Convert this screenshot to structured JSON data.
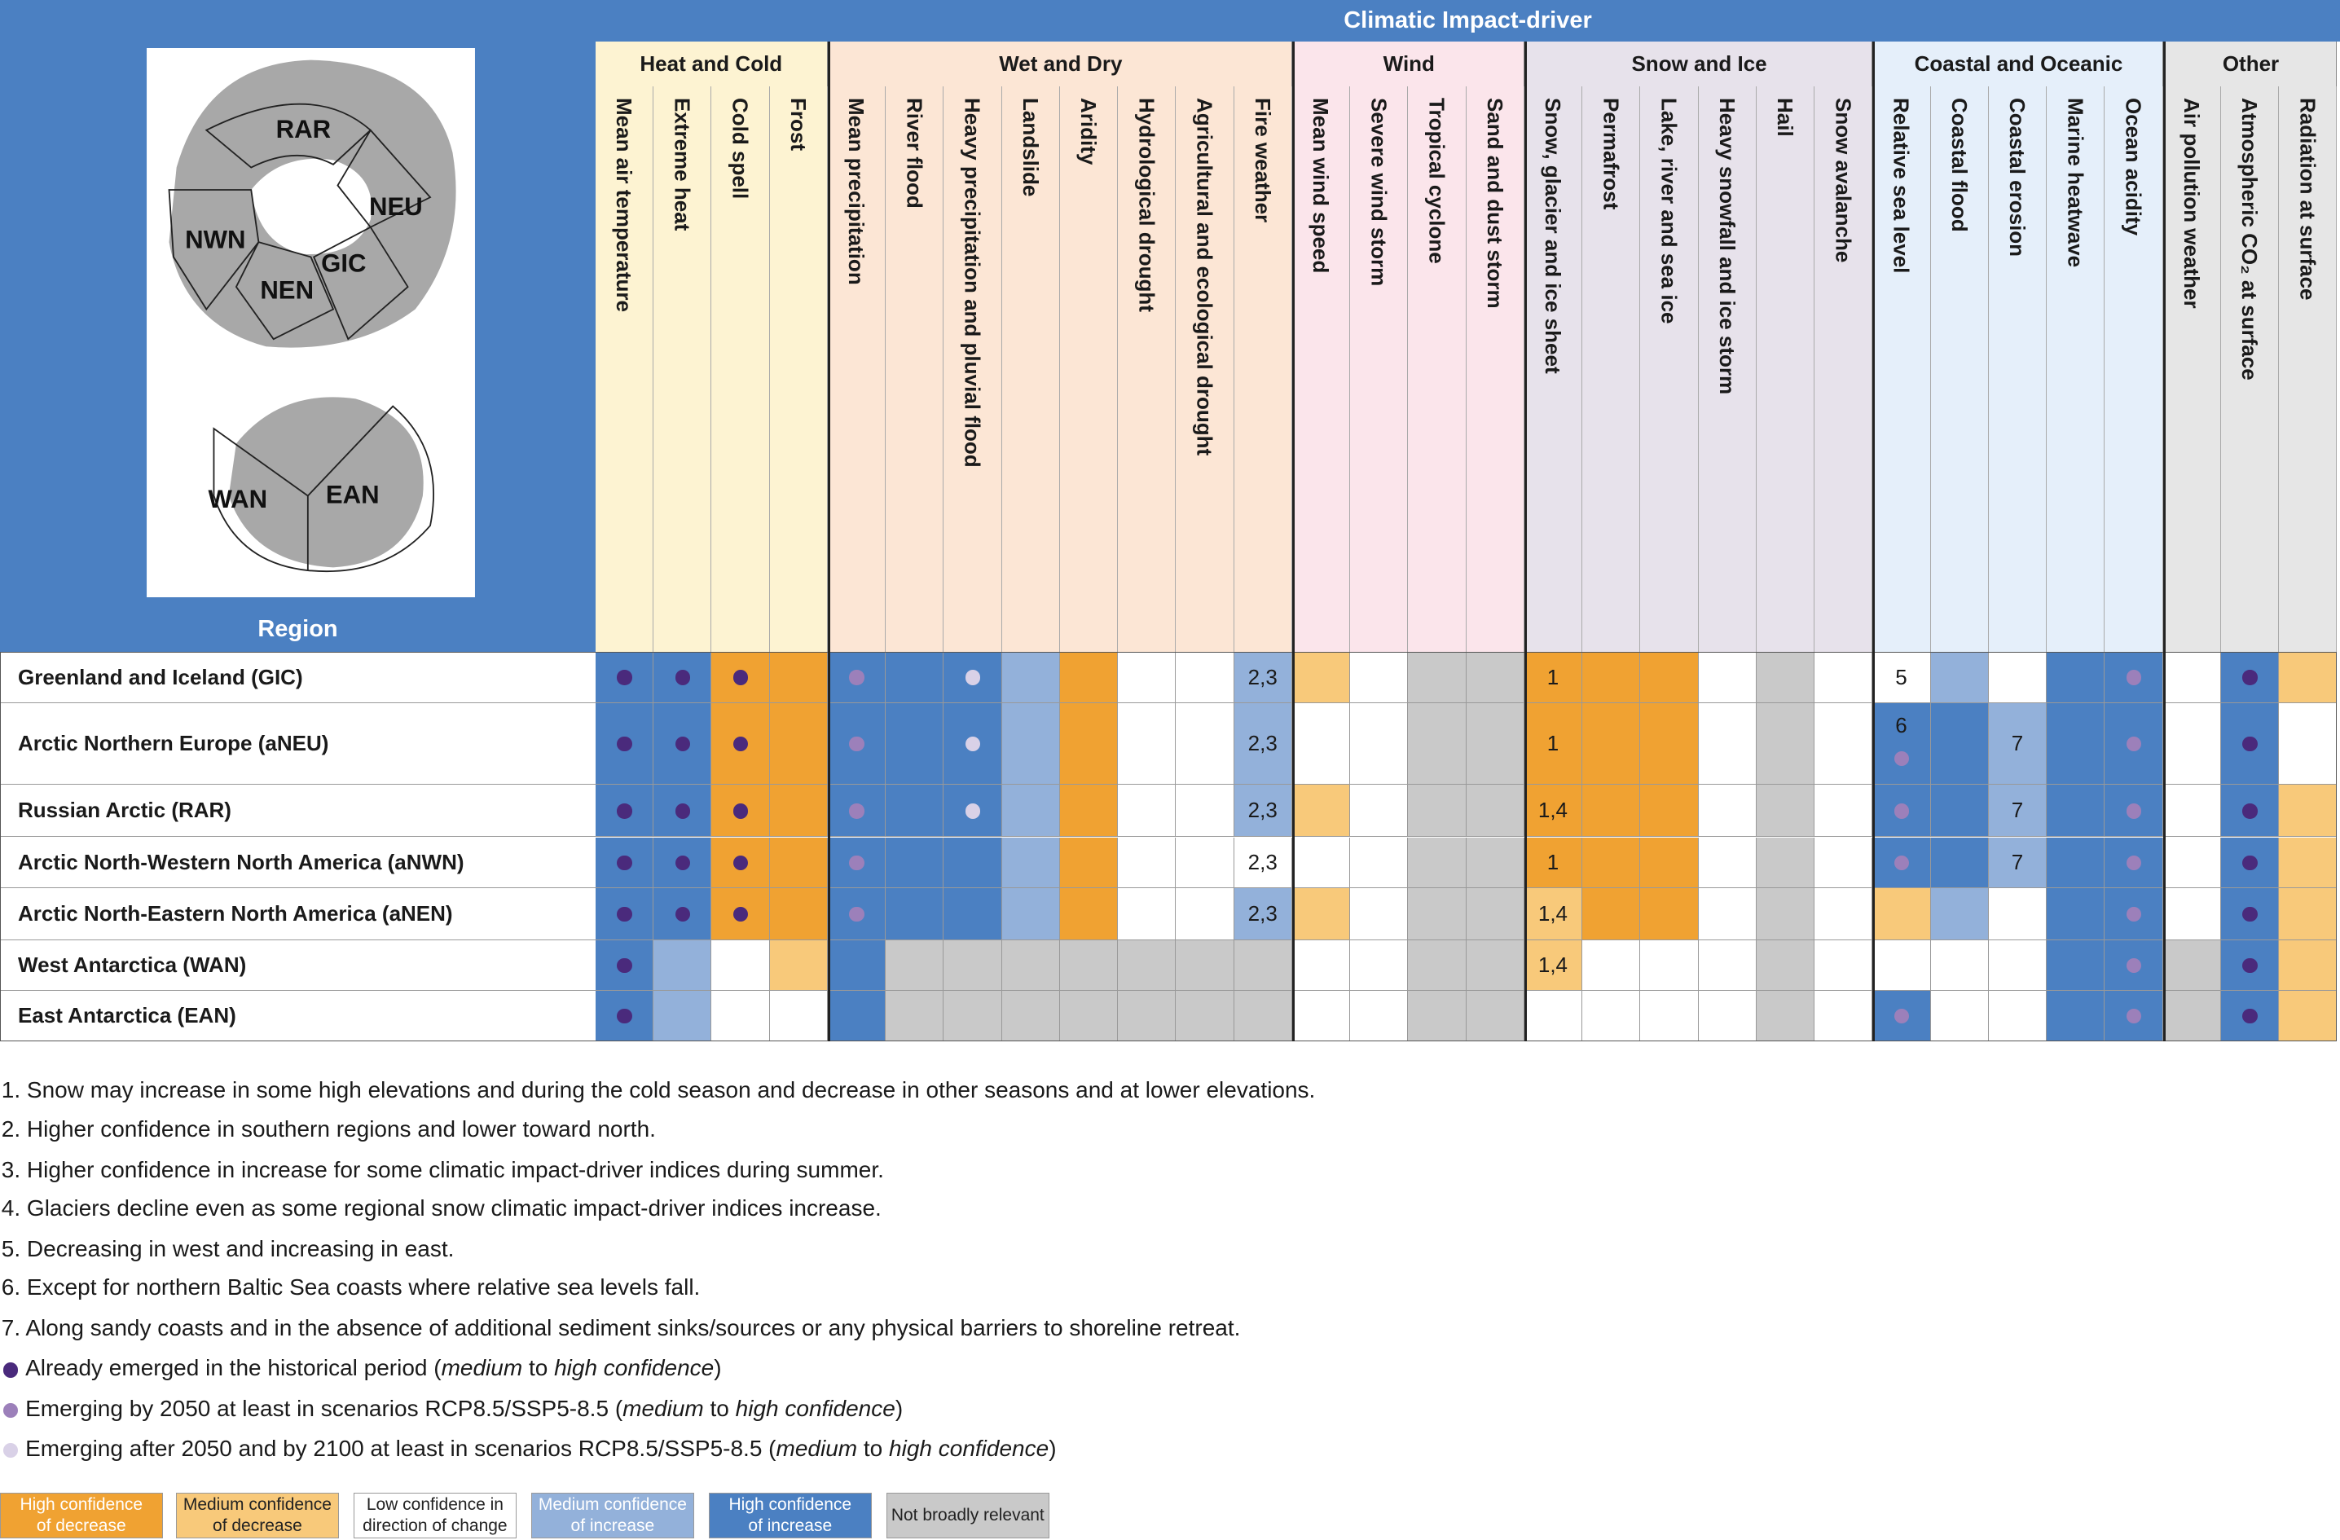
{
  "header": {
    "title": "Climatic Impact-driver",
    "region_label": "Region"
  },
  "map": {
    "labels": [
      "RAR",
      "NEU",
      "NWN",
      "GIC",
      "NEN",
      "WAN",
      "EAN"
    ]
  },
  "groups": [
    {
      "name": "Heat and Cold",
      "color": "#fdf3d2",
      "columns": [
        "Mean air temperature",
        "Extreme heat",
        "Cold spell",
        "Frost"
      ]
    },
    {
      "name": "Wet and Dry",
      "color": "#fce6d5",
      "columns": [
        "Mean precipitation",
        "River flood",
        "Heavy precipitation and pluvial flood",
        "Landslide",
        "Aridity",
        "Hydrological drought",
        "Agricultural and ecological drought",
        "Fire weather"
      ]
    },
    {
      "name": "Wind",
      "color": "#fbe5eb",
      "columns": [
        "Mean wind speed",
        "Severe wind storm",
        "Tropical cyclone",
        "Sand and dust storm"
      ]
    },
    {
      "name": "Snow and Ice",
      "color": "#e7e2eb",
      "columns": [
        "Snow, glacier and ice sheet",
        "Permafrost",
        "Lake, river and sea ice",
        "Heavy snowfall and ice storm",
        "Hail",
        "Snow avalanche"
      ]
    },
    {
      "name": "Coastal and Oceanic",
      "color": "#e5effa",
      "columns": [
        "Relative sea level",
        "Coastal flood",
        "Coastal erosion",
        "Marine heatwave",
        "Ocean acidity"
      ]
    },
    {
      "name": "Other",
      "color": "#e6e6e6",
      "columns": [
        "Air pollution weather",
        "Atmospheric CO₂ at surface",
        "Radiation at surface"
      ]
    }
  ],
  "rows": [
    {
      "region": "Greenland and Iceland (GIC)",
      "cells": [
        {
          "level": "HI",
          "dot": 0
        },
        {
          "level": "HI",
          "dot": 0
        },
        {
          "level": "HD",
          "dot": 0
        },
        {
          "level": "HD"
        },
        {
          "level": "HI",
          "dot": 1
        },
        {
          "level": "HI"
        },
        {
          "level": "HI",
          "dot": 2
        },
        {
          "level": "MI"
        },
        {
          "level": "HD"
        },
        {
          "level": "L"
        },
        {
          "level": "L"
        },
        {
          "level": "MI",
          "note": "2,3"
        },
        {
          "level": "MD"
        },
        {
          "level": "L"
        },
        {
          "level": "N"
        },
        {
          "level": "N"
        },
        {
          "level": "HD",
          "note": "1"
        },
        {
          "level": "HD"
        },
        {
          "level": "HD"
        },
        {
          "level": "L"
        },
        {
          "level": "N"
        },
        {
          "level": "L"
        },
        {
          "level": "L",
          "note": "5"
        },
        {
          "level": "MI"
        },
        {
          "level": "L"
        },
        {
          "level": "HI"
        },
        {
          "level": "HI",
          "dot": 1
        },
        {
          "level": "L"
        },
        {
          "level": "HI",
          "dot": 0
        },
        {
          "level": "MD"
        }
      ]
    },
    {
      "region": "Arctic Northern Europe (aNEU)",
      "cells": [
        {
          "level": "HI",
          "dot": 0
        },
        {
          "level": "HI",
          "dot": 0
        },
        {
          "level": "HD",
          "dot": 0
        },
        {
          "level": "HD"
        },
        {
          "level": "HI",
          "dot": 1
        },
        {
          "level": "HI"
        },
        {
          "level": "HI",
          "dot": 2
        },
        {
          "level": "MI"
        },
        {
          "level": "HD"
        },
        {
          "level": "L"
        },
        {
          "level": "L"
        },
        {
          "level": "MI",
          "note": "2,3"
        },
        {
          "level": "L"
        },
        {
          "level": "L"
        },
        {
          "level": "N"
        },
        {
          "level": "N"
        },
        {
          "level": "HD",
          "note": "1"
        },
        {
          "level": "HD"
        },
        {
          "level": "HD"
        },
        {
          "level": "L"
        },
        {
          "level": "N"
        },
        {
          "level": "L"
        },
        {
          "level": "HI",
          "note": "6",
          "dot": 1
        },
        {
          "level": "HI"
        },
        {
          "level": "MI",
          "note": "7"
        },
        {
          "level": "HI"
        },
        {
          "level": "HI",
          "dot": 1
        },
        {
          "level": "L"
        },
        {
          "level": "HI",
          "dot": 0
        },
        {
          "level": "L"
        }
      ]
    },
    {
      "region": "Russian Arctic (RAR)",
      "cells": [
        {
          "level": "HI",
          "dot": 0
        },
        {
          "level": "HI",
          "dot": 0
        },
        {
          "level": "HD",
          "dot": 0
        },
        {
          "level": "HD"
        },
        {
          "level": "HI",
          "dot": 1
        },
        {
          "level": "HI"
        },
        {
          "level": "HI",
          "dot": 2
        },
        {
          "level": "MI"
        },
        {
          "level": "HD"
        },
        {
          "level": "L"
        },
        {
          "level": "L"
        },
        {
          "level": "MI",
          "note": "2,3"
        },
        {
          "level": "MD"
        },
        {
          "level": "L"
        },
        {
          "level": "N"
        },
        {
          "level": "N"
        },
        {
          "level": "HD",
          "note": "1,4"
        },
        {
          "level": "HD"
        },
        {
          "level": "HD"
        },
        {
          "level": "L"
        },
        {
          "level": "N"
        },
        {
          "level": "L"
        },
        {
          "level": "HI",
          "dot": 1
        },
        {
          "level": "HI"
        },
        {
          "level": "MI",
          "note": "7"
        },
        {
          "level": "HI"
        },
        {
          "level": "HI",
          "dot": 1
        },
        {
          "level": "L"
        },
        {
          "level": "HI",
          "dot": 0
        },
        {
          "level": "MD"
        }
      ]
    },
    {
      "region": "Arctic North-Western North America (aNWN)",
      "cells": [
        {
          "level": "HI",
          "dot": 0
        },
        {
          "level": "HI",
          "dot": 0
        },
        {
          "level": "HD",
          "dot": 0
        },
        {
          "level": "HD"
        },
        {
          "level": "HI",
          "dot": 1
        },
        {
          "level": "HI"
        },
        {
          "level": "HI"
        },
        {
          "level": "MI"
        },
        {
          "level": "HD"
        },
        {
          "level": "L"
        },
        {
          "level": "L"
        },
        {
          "level": "L",
          "note": "2,3"
        },
        {
          "level": "L"
        },
        {
          "level": "L"
        },
        {
          "level": "N"
        },
        {
          "level": "N"
        },
        {
          "level": "HD",
          "note": "1"
        },
        {
          "level": "HD"
        },
        {
          "level": "HD"
        },
        {
          "level": "L"
        },
        {
          "level": "N"
        },
        {
          "level": "L"
        },
        {
          "level": "HI",
          "dot": 1
        },
        {
          "level": "HI"
        },
        {
          "level": "MI",
          "note": "7"
        },
        {
          "level": "HI"
        },
        {
          "level": "HI",
          "dot": 1
        },
        {
          "level": "L"
        },
        {
          "level": "HI",
          "dot": 0
        },
        {
          "level": "MD"
        }
      ]
    },
    {
      "region": "Arctic North-Eastern North America (aNEN)",
      "cells": [
        {
          "level": "HI",
          "dot": 0
        },
        {
          "level": "HI",
          "dot": 0
        },
        {
          "level": "HD",
          "dot": 0
        },
        {
          "level": "HD"
        },
        {
          "level": "HI",
          "dot": 1
        },
        {
          "level": "HI"
        },
        {
          "level": "HI"
        },
        {
          "level": "MI"
        },
        {
          "level": "HD"
        },
        {
          "level": "L"
        },
        {
          "level": "L"
        },
        {
          "level": "MI",
          "note": "2,3"
        },
        {
          "level": "MD"
        },
        {
          "level": "L"
        },
        {
          "level": "N"
        },
        {
          "level": "N"
        },
        {
          "level": "MD",
          "note": "1,4"
        },
        {
          "level": "HD"
        },
        {
          "level": "HD"
        },
        {
          "level": "L"
        },
        {
          "level": "N"
        },
        {
          "level": "L"
        },
        {
          "level": "MD"
        },
        {
          "level": "MI"
        },
        {
          "level": "L"
        },
        {
          "level": "HI"
        },
        {
          "level": "HI",
          "dot": 1
        },
        {
          "level": "L"
        },
        {
          "level": "HI",
          "dot": 0
        },
        {
          "level": "MD"
        }
      ]
    },
    {
      "region": "West Antarctica (WAN)",
      "cells": [
        {
          "level": "HI",
          "dot": 0
        },
        {
          "level": "MI"
        },
        {
          "level": "L"
        },
        {
          "level": "MD"
        },
        {
          "level": "HI"
        },
        {
          "level": "N"
        },
        {
          "level": "N"
        },
        {
          "level": "N"
        },
        {
          "level": "N"
        },
        {
          "level": "N"
        },
        {
          "level": "N"
        },
        {
          "level": "N"
        },
        {
          "level": "L"
        },
        {
          "level": "L"
        },
        {
          "level": "N"
        },
        {
          "level": "N"
        },
        {
          "level": "MD",
          "note": "1,4"
        },
        {
          "level": "L"
        },
        {
          "level": "L"
        },
        {
          "level": "L"
        },
        {
          "level": "N"
        },
        {
          "level": "L"
        },
        {
          "level": "L"
        },
        {
          "level": "L"
        },
        {
          "level": "L"
        },
        {
          "level": "HI"
        },
        {
          "level": "HI",
          "dot": 1
        },
        {
          "level": "N"
        },
        {
          "level": "HI",
          "dot": 0
        },
        {
          "level": "MD"
        }
      ]
    },
    {
      "region": "East Antarctica (EAN)",
      "cells": [
        {
          "level": "HI",
          "dot": 0
        },
        {
          "level": "MI"
        },
        {
          "level": "L"
        },
        {
          "level": "L"
        },
        {
          "level": "HI"
        },
        {
          "level": "N"
        },
        {
          "level": "N"
        },
        {
          "level": "N"
        },
        {
          "level": "N"
        },
        {
          "level": "N"
        },
        {
          "level": "N"
        },
        {
          "level": "N"
        },
        {
          "level": "L"
        },
        {
          "level": "L"
        },
        {
          "level": "N"
        },
        {
          "level": "N"
        },
        {
          "level": "L"
        },
        {
          "level": "L"
        },
        {
          "level": "L"
        },
        {
          "level": "L"
        },
        {
          "level": "N"
        },
        {
          "level": "L"
        },
        {
          "level": "HI",
          "dot": 1
        },
        {
          "level": "L"
        },
        {
          "level": "L"
        },
        {
          "level": "HI"
        },
        {
          "level": "HI",
          "dot": 1
        },
        {
          "level": "N"
        },
        {
          "level": "HI",
          "dot": 0
        },
        {
          "level": "MD"
        }
      ]
    }
  ],
  "footnotes": [
    "1. Snow may increase in some high elevations and during the cold season and decrease in other seasons and at lower elevations.",
    "2. Higher confidence in southern regions and lower toward north.",
    "3. Higher confidence in increase for some climatic impact-driver indices during summer.",
    "4. Glaciers decline even as some regional snow climatic impact-driver indices increase.",
    "5. Decreasing in west and increasing in east.",
    "6. Except for northern Baltic Sea coasts where relative sea levels fall.",
    "7. Along sandy coasts and in the absence of additional sediment sinks/sources or any physical barriers to shoreline retreat."
  ],
  "dot_legend": [
    {
      "color": "#4a2a7c",
      "parts": [
        "Already emerged in the historical period (",
        "medium",
        " to ",
        "high confidence",
        ")"
      ]
    },
    {
      "color": "#9c80ba",
      "parts": [
        "Emerging by 2050 at least in scenarios RCP8.5/SSP5-8.5 (",
        "medium",
        " to ",
        "high confidence",
        ")"
      ]
    },
    {
      "color": "#d9d1e7",
      "parts": [
        "Emerging after 2050 and by 2100 at least in scenarios RCP8.5/SSP5-8.5 (",
        "medium",
        " to ",
        "high confidence",
        ")"
      ]
    }
  ],
  "legend": [
    {
      "code": "HD",
      "color": "#f0a232",
      "lines": [
        "High confidence",
        "of decrease"
      ]
    },
    {
      "code": "MD",
      "color": "#f8c97a",
      "lines": [
        "Medium confidence",
        "of decrease"
      ]
    },
    {
      "code": "L",
      "color": "#ffffff",
      "lines": [
        "Low confidence in",
        "direction of change"
      ]
    },
    {
      "code": "MI",
      "color": "#93b1da",
      "lines": [
        "Medium confidence",
        "of increase"
      ]
    },
    {
      "code": "HI",
      "color": "#4b80c2",
      "lines": [
        "High confidence",
        "of increase"
      ]
    },
    {
      "code": "N",
      "color": "#c9c9c9",
      "lines": [
        "Not broadly relevant"
      ]
    }
  ]
}
